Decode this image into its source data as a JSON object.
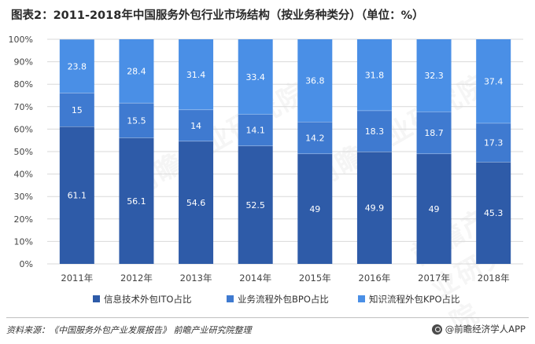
{
  "title": "图表2：2011-2018年中国服务外包行业市场结构（按业务种类分）（单位：%）",
  "footer": {
    "source": "资料来源：《中国服务外包产业发展报告》 前瞻产业研究院整理",
    "brand": "@前瞻经济学人APP"
  },
  "watermark": "前瞻产业研究院",
  "colors": {
    "ito": "#2E5BA8",
    "bpo": "#3F7AD0",
    "kpo": "#4A8FE6",
    "grid": "#d9d9d9",
    "label": "#ffffff"
  },
  "chart_data": {
    "type": "bar",
    "stacked": true,
    "categories": [
      "2011年",
      "2012年",
      "2013年",
      "2014年",
      "2015年",
      "2016年",
      "2017年",
      "2018年"
    ],
    "series": [
      {
        "name": "信息技术外包ITO占比",
        "values": [
          61.1,
          56.1,
          54.6,
          52.5,
          49,
          49.9,
          49,
          45.3
        ]
      },
      {
        "name": "业务流程外包BPO占比",
        "values": [
          15,
          15.5,
          14,
          14.1,
          14.2,
          18.3,
          18.7,
          17.3
        ]
      },
      {
        "name": "知识流程外包KPO占比",
        "values": [
          23.8,
          28.4,
          31.4,
          33.4,
          36.8,
          31.8,
          32.3,
          37.4
        ]
      }
    ],
    "yticks": [
      "0%",
      "10%",
      "20%",
      "30%",
      "40%",
      "50%",
      "60%",
      "70%",
      "80%",
      "90%",
      "100%"
    ],
    "ylim": [
      0,
      100
    ],
    "grid": true,
    "legend": "bottom"
  }
}
